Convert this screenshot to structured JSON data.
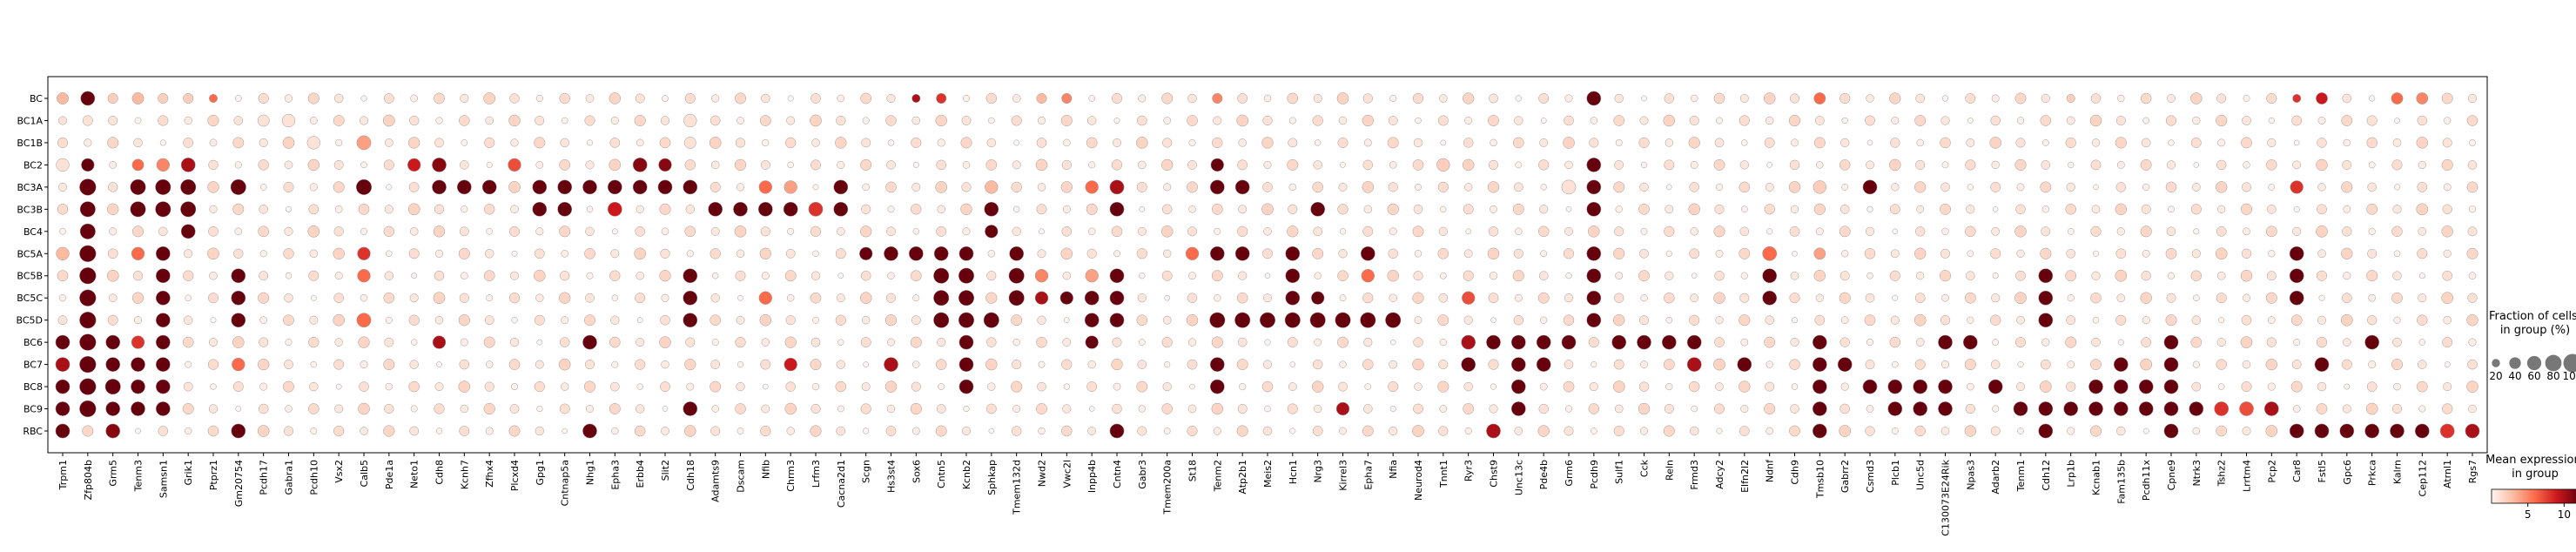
{
  "chart_data": {
    "type": "dotplot",
    "rows": [
      "BC",
      "BC1A",
      "BC1B",
      "BC2",
      "BC3A",
      "BC3B",
      "BC4",
      "BC5A",
      "BC5B",
      "BC5C",
      "BC5D",
      "BC6",
      "BC7",
      "BC8",
      "BC9",
      "RBC"
    ],
    "genes": [
      "Trpm1",
      "Zfp804b",
      "Grm5",
      "Tenm3",
      "Samsn1",
      "Grik1",
      "Ptprz1",
      "Gm20754",
      "Pcdh17",
      "Gabra1",
      "Pcdh10",
      "Vsx2",
      "Calb5",
      "Pde1a",
      "Neto1",
      "Cdh8",
      "Kcnh7",
      "Zfhx4",
      "Plcxd4",
      "Gpg1",
      "Cntnap5a",
      "Nhg1",
      "Epha3",
      "Erbb4",
      "Slit2",
      "Cdh18",
      "Adamts9",
      "Dscam",
      "Nfib",
      "Chrm3",
      "Lrfm3",
      "Cacna2d1",
      "Scgn",
      "Hs3st4",
      "Sox6",
      "Cntn5",
      "Kcnb2",
      "Sphkap",
      "Tmem132d",
      "Nwd2",
      "Vwc2l",
      "Inpp4b",
      "Cntn4",
      "Gabr3",
      "Tmem200a",
      "St18",
      "Tenm2",
      "Atp2b1",
      "Meis2",
      "Hcn1",
      "Nrg3",
      "Kirrel3",
      "Epha7",
      "Nfia",
      "Neurod4",
      "Tnnt1",
      "Ryr3",
      "Chst9",
      "Unc13c",
      "Pde4b",
      "Grm6",
      "Pcdh9",
      "Sulf1",
      "Cck",
      "Reln",
      "Frmd3",
      "Adcy2",
      "Elfn2l2",
      "Ndnf",
      "Cdh9",
      "Tmsb10",
      "Gabrr2",
      "Csmd3",
      "Plcb1",
      "Unc5d",
      "C130073E24Rik",
      "Npas3",
      "Adarb2",
      "Tenm1",
      "Cdh12",
      "Lrp1b",
      "Kcnab1",
      "Fam135b",
      "Pcdh11x",
      "Cpne9",
      "Ntrk3",
      "Tshz2",
      "Lrrtm4",
      "Pcp2",
      "Car8",
      "Fstl5",
      "Gpc6",
      "Prkca",
      "Kalrn",
      "Cep112",
      "Atrnl1",
      "Rgs7"
    ],
    "size_legend": {
      "title": "Fraction of cells\nin group (%)",
      "ticks": [
        20,
        40,
        60,
        80,
        100
      ]
    },
    "color_legend": {
      "title": "Mean expression\nin group",
      "ticks": [
        5,
        10
      ],
      "range": [
        0,
        12
      ]
    },
    "markers": [
      [
        0,
        0,
        40,
        3
      ],
      [
        0,
        1,
        60,
        12
      ],
      [
        0,
        2,
        30,
        2
      ],
      [
        0,
        3,
        40,
        3
      ],
      [
        0,
        4,
        30,
        2
      ],
      [
        0,
        5,
        30,
        2
      ],
      [
        0,
        6,
        20,
        6
      ],
      [
        0,
        34,
        20,
        10
      ],
      [
        0,
        35,
        30,
        8
      ],
      [
        0,
        39,
        30,
        3
      ],
      [
        0,
        40,
        30,
        5
      ],
      [
        0,
        46,
        30,
        5
      ],
      [
        0,
        61,
        60,
        12
      ],
      [
        0,
        70,
        40,
        6
      ],
      [
        0,
        80,
        20,
        2
      ],
      [
        0,
        89,
        20,
        8
      ],
      [
        0,
        90,
        40,
        9
      ],
      [
        0,
        93,
        40,
        6
      ],
      [
        0,
        94,
        40,
        5
      ],
      [
        1,
        0,
        20,
        1
      ],
      [
        1,
        1,
        30,
        1
      ],
      [
        1,
        8,
        40,
        1
      ],
      [
        1,
        9,
        50,
        1
      ],
      [
        1,
        25,
        50,
        1
      ],
      [
        1,
        92,
        30,
        1
      ],
      [
        2,
        10,
        50,
        1
      ],
      [
        2,
        12,
        60,
        4
      ],
      [
        2,
        25,
        40,
        1
      ],
      [
        3,
        0,
        50,
        1
      ],
      [
        3,
        1,
        50,
        12
      ],
      [
        3,
        3,
        40,
        6
      ],
      [
        3,
        4,
        50,
        5
      ],
      [
        3,
        5,
        60,
        10
      ],
      [
        3,
        14,
        50,
        9
      ],
      [
        3,
        15,
        60,
        11
      ],
      [
        3,
        18,
        50,
        7
      ],
      [
        3,
        23,
        60,
        11
      ],
      [
        3,
        24,
        50,
        11
      ],
      [
        3,
        46,
        50,
        12
      ],
      [
        3,
        55,
        50,
        2
      ],
      [
        3,
        61,
        60,
        12
      ],
      [
        4,
        1,
        80,
        12
      ],
      [
        4,
        3,
        70,
        12
      ],
      [
        4,
        4,
        70,
        12
      ],
      [
        4,
        5,
        70,
        12
      ],
      [
        4,
        7,
        70,
        12
      ],
      [
        4,
        12,
        70,
        12
      ],
      [
        4,
        15,
        60,
        12
      ],
      [
        4,
        16,
        60,
        12
      ],
      [
        4,
        17,
        60,
        12
      ],
      [
        4,
        19,
        60,
        12
      ],
      [
        4,
        20,
        60,
        12
      ],
      [
        4,
        21,
        60,
        12
      ],
      [
        4,
        22,
        60,
        12
      ],
      [
        4,
        23,
        60,
        12
      ],
      [
        4,
        24,
        60,
        12
      ],
      [
        4,
        25,
        60,
        12
      ],
      [
        4,
        28,
        50,
        6
      ],
      [
        4,
        29,
        50,
        4
      ],
      [
        4,
        31,
        60,
        12
      ],
      [
        4,
        37,
        50,
        3
      ],
      [
        4,
        41,
        50,
        6
      ],
      [
        4,
        42,
        60,
        10
      ],
      [
        4,
        46,
        60,
        12
      ],
      [
        4,
        47,
        60,
        12
      ],
      [
        4,
        60,
        60,
        1
      ],
      [
        4,
        61,
        60,
        12
      ],
      [
        4,
        70,
        50,
        2
      ],
      [
        4,
        72,
        60,
        12
      ],
      [
        4,
        89,
        50,
        8
      ],
      [
        5,
        1,
        70,
        12
      ],
      [
        5,
        3,
        70,
        12
      ],
      [
        5,
        4,
        70,
        12
      ],
      [
        5,
        5,
        70,
        12
      ],
      [
        5,
        19,
        60,
        12
      ],
      [
        5,
        20,
        60,
        12
      ],
      [
        5,
        22,
        60,
        9
      ],
      [
        5,
        26,
        60,
        12
      ],
      [
        5,
        27,
        60,
        12
      ],
      [
        5,
        28,
        60,
        12
      ],
      [
        5,
        29,
        60,
        12
      ],
      [
        5,
        30,
        60,
        8
      ],
      [
        5,
        31,
        60,
        12
      ],
      [
        5,
        37,
        60,
        12
      ],
      [
        5,
        42,
        60,
        12
      ],
      [
        5,
        50,
        60,
        12
      ],
      [
        5,
        61,
        60,
        12
      ],
      [
        6,
        1,
        70,
        12
      ],
      [
        6,
        5,
        60,
        12
      ],
      [
        6,
        37,
        50,
        12
      ],
      [
        7,
        0,
        50,
        3
      ],
      [
        7,
        1,
        80,
        12
      ],
      [
        7,
        3,
        50,
        6
      ],
      [
        7,
        4,
        60,
        12
      ],
      [
        7,
        12,
        50,
        8
      ],
      [
        7,
        32,
        50,
        12
      ],
      [
        7,
        33,
        60,
        12
      ],
      [
        7,
        34,
        60,
        12
      ],
      [
        7,
        35,
        60,
        12
      ],
      [
        7,
        36,
        60,
        12
      ],
      [
        7,
        38,
        60,
        12
      ],
      [
        7,
        45,
        50,
        6
      ],
      [
        7,
        46,
        60,
        12
      ],
      [
        7,
        47,
        60,
        12
      ],
      [
        7,
        49,
        60,
        12
      ],
      [
        7,
        52,
        60,
        12
      ],
      [
        7,
        61,
        60,
        12
      ],
      [
        7,
        68,
        60,
        6
      ],
      [
        7,
        70,
        40,
        4
      ],
      [
        7,
        89,
        60,
        12
      ],
      [
        8,
        1,
        80,
        12
      ],
      [
        8,
        4,
        60,
        12
      ],
      [
        8,
        7,
        60,
        12
      ],
      [
        8,
        12,
        50,
        6
      ],
      [
        8,
        25,
        60,
        12
      ],
      [
        8,
        35,
        70,
        12
      ],
      [
        8,
        36,
        70,
        12
      ],
      [
        8,
        38,
        70,
        12
      ],
      [
        8,
        39,
        50,
        5
      ],
      [
        8,
        41,
        50,
        4
      ],
      [
        8,
        42,
        60,
        12
      ],
      [
        8,
        49,
        60,
        12
      ],
      [
        8,
        52,
        50,
        6
      ],
      [
        8,
        61,
        60,
        12
      ],
      [
        8,
        68,
        60,
        12
      ],
      [
        8,
        79,
        60,
        12
      ],
      [
        8,
        89,
        60,
        12
      ],
      [
        9,
        1,
        80,
        12
      ],
      [
        9,
        4,
        60,
        12
      ],
      [
        9,
        7,
        60,
        12
      ],
      [
        9,
        25,
        60,
        12
      ],
      [
        9,
        28,
        50,
        6
      ],
      [
        9,
        35,
        70,
        12
      ],
      [
        9,
        36,
        70,
        12
      ],
      [
        9,
        38,
        70,
        12
      ],
      [
        9,
        39,
        50,
        10
      ],
      [
        9,
        40,
        50,
        12
      ],
      [
        9,
        41,
        60,
        12
      ],
      [
        9,
        42,
        60,
        12
      ],
      [
        9,
        49,
        60,
        12
      ],
      [
        9,
        50,
        50,
        12
      ],
      [
        9,
        56,
        50,
        7
      ],
      [
        9,
        61,
        60,
        12
      ],
      [
        9,
        68,
        60,
        12
      ],
      [
        9,
        79,
        60,
        12
      ],
      [
        9,
        89,
        60,
        12
      ],
      [
        10,
        1,
        80,
        12
      ],
      [
        10,
        4,
        60,
        12
      ],
      [
        10,
        7,
        60,
        12
      ],
      [
        10,
        12,
        60,
        6
      ],
      [
        10,
        25,
        60,
        12
      ],
      [
        10,
        35,
        70,
        12
      ],
      [
        10,
        36,
        70,
        12
      ],
      [
        10,
        37,
        70,
        12
      ],
      [
        10,
        41,
        60,
        12
      ],
      [
        10,
        42,
        60,
        12
      ],
      [
        10,
        46,
        70,
        12
      ],
      [
        10,
        47,
        70,
        12
      ],
      [
        10,
        48,
        70,
        12
      ],
      [
        10,
        49,
        70,
        12
      ],
      [
        10,
        50,
        70,
        12
      ],
      [
        10,
        51,
        70,
        12
      ],
      [
        10,
        52,
        70,
        12
      ],
      [
        10,
        53,
        70,
        12
      ],
      [
        10,
        61,
        60,
        12
      ],
      [
        10,
        79,
        60,
        12
      ],
      [
        10,
        98,
        60,
        8
      ],
      [
        11,
        0,
        60,
        12
      ],
      [
        11,
        1,
        80,
        12
      ],
      [
        11,
        2,
        60,
        12
      ],
      [
        11,
        3,
        50,
        8
      ],
      [
        11,
        4,
        60,
        12
      ],
      [
        11,
        15,
        50,
        10
      ],
      [
        11,
        21,
        60,
        12
      ],
      [
        11,
        36,
        60,
        12
      ],
      [
        11,
        41,
        50,
        12
      ],
      [
        11,
        56,
        60,
        10
      ],
      [
        11,
        57,
        60,
        12
      ],
      [
        11,
        58,
        60,
        12
      ],
      [
        11,
        59,
        60,
        12
      ],
      [
        11,
        60,
        60,
        12
      ],
      [
        11,
        62,
        60,
        12
      ],
      [
        11,
        63,
        60,
        12
      ],
      [
        11,
        64,
        60,
        12
      ],
      [
        11,
        65,
        60,
        12
      ],
      [
        11,
        70,
        60,
        12
      ],
      [
        11,
        75,
        60,
        12
      ],
      [
        11,
        76,
        60,
        12
      ],
      [
        11,
        84,
        60,
        12
      ],
      [
        11,
        92,
        60,
        12
      ],
      [
        12,
        0,
        60,
        10
      ],
      [
        12,
        1,
        80,
        12
      ],
      [
        12,
        2,
        60,
        12
      ],
      [
        12,
        3,
        60,
        12
      ],
      [
        12,
        4,
        60,
        12
      ],
      [
        12,
        7,
        50,
        6
      ],
      [
        12,
        29,
        50,
        9
      ],
      [
        12,
        33,
        60,
        10
      ],
      [
        12,
        36,
        60,
        12
      ],
      [
        12,
        46,
        60,
        12
      ],
      [
        12,
        56,
        60,
        12
      ],
      [
        12,
        58,
        60,
        12
      ],
      [
        12,
        59,
        60,
        12
      ],
      [
        12,
        65,
        60,
        10
      ],
      [
        12,
        67,
        60,
        12
      ],
      [
        12,
        70,
        60,
        12
      ],
      [
        12,
        71,
        60,
        12
      ],
      [
        12,
        82,
        60,
        12
      ],
      [
        12,
        84,
        60,
        12
      ],
      [
        12,
        90,
        60,
        12
      ],
      [
        13,
        0,
        60,
        12
      ],
      [
        13,
        1,
        80,
        12
      ],
      [
        13,
        2,
        70,
        12
      ],
      [
        13,
        3,
        60,
        12
      ],
      [
        13,
        4,
        60,
        12
      ],
      [
        13,
        36,
        60,
        12
      ],
      [
        13,
        46,
        60,
        12
      ],
      [
        13,
        58,
        60,
        12
      ],
      [
        13,
        70,
        60,
        12
      ],
      [
        13,
        72,
        60,
        12
      ],
      [
        13,
        73,
        60,
        12
      ],
      [
        13,
        74,
        60,
        12
      ],
      [
        13,
        75,
        60,
        12
      ],
      [
        13,
        77,
        60,
        12
      ],
      [
        13,
        81,
        60,
        12
      ],
      [
        13,
        82,
        60,
        12
      ],
      [
        13,
        83,
        60,
        12
      ],
      [
        13,
        84,
        60,
        12
      ],
      [
        14,
        0,
        60,
        12
      ],
      [
        14,
        1,
        80,
        12
      ],
      [
        14,
        2,
        60,
        12
      ],
      [
        14,
        3,
        60,
        12
      ],
      [
        14,
        4,
        60,
        12
      ],
      [
        14,
        25,
        60,
        12
      ],
      [
        14,
        51,
        50,
        10
      ],
      [
        14,
        58,
        60,
        12
      ],
      [
        14,
        70,
        60,
        12
      ],
      [
        14,
        73,
        60,
        12
      ],
      [
        14,
        74,
        60,
        12
      ],
      [
        14,
        75,
        60,
        12
      ],
      [
        14,
        78,
        60,
        12
      ],
      [
        14,
        79,
        60,
        12
      ],
      [
        14,
        80,
        60,
        12
      ],
      [
        14,
        81,
        60,
        12
      ],
      [
        14,
        82,
        60,
        12
      ],
      [
        14,
        83,
        60,
        12
      ],
      [
        14,
        84,
        60,
        12
      ],
      [
        14,
        85,
        60,
        12
      ],
      [
        14,
        86,
        60,
        8
      ],
      [
        14,
        87,
        60,
        7
      ],
      [
        14,
        88,
        60,
        10
      ],
      [
        15,
        0,
        60,
        12
      ],
      [
        15,
        2,
        60,
        11
      ],
      [
        15,
        7,
        60,
        12
      ],
      [
        15,
        21,
        60,
        12
      ],
      [
        15,
        42,
        60,
        12
      ],
      [
        15,
        57,
        60,
        10
      ],
      [
        15,
        70,
        60,
        12
      ],
      [
        15,
        79,
        60,
        12
      ],
      [
        15,
        84,
        60,
        12
      ],
      [
        15,
        89,
        60,
        12
      ],
      [
        15,
        90,
        60,
        12
      ],
      [
        15,
        91,
        60,
        12
      ],
      [
        15,
        92,
        60,
        12
      ],
      [
        15,
        93,
        60,
        12
      ],
      [
        15,
        94,
        60,
        12
      ],
      [
        15,
        95,
        60,
        8
      ],
      [
        15,
        96,
        60,
        10
      ],
      [
        15,
        97,
        60,
        12
      ],
      [
        15,
        98,
        60,
        12
      ]
    ]
  }
}
